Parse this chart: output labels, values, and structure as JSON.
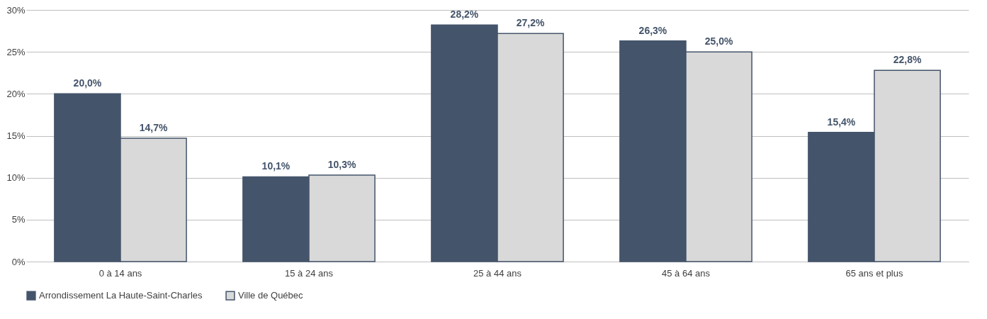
{
  "chart_data": {
    "type": "bar",
    "categories": [
      "0 à 14 ans",
      "15 à 24 ans",
      "25 à 44 ans",
      "45 à 64 ans",
      "65 ans et plus"
    ],
    "series": [
      {
        "name": "Arrondissement La Haute-Saint-Charles",
        "color": "#44546a",
        "values": [
          20.0,
          10.1,
          28.2,
          26.3,
          15.4
        ],
        "value_labels": [
          "20,0%",
          "10,1%",
          "28,2%",
          "26,3%",
          "15,4%"
        ]
      },
      {
        "name": "Ville de Québec",
        "color": "#d9d9d9",
        "values": [
          14.7,
          10.3,
          27.2,
          25.0,
          22.8
        ],
        "value_labels": [
          "14,7%",
          "10,3%",
          "27,2%",
          "25,0%",
          "22,8%"
        ]
      }
    ],
    "ylim": [
      0,
      30
    ],
    "yticks": [
      {
        "value": 0,
        "label": "0%"
      },
      {
        "value": 5,
        "label": "5%"
      },
      {
        "value": 10,
        "label": "10%"
      },
      {
        "value": 15,
        "label": "15%"
      },
      {
        "value": 20,
        "label": "20%"
      },
      {
        "value": 25,
        "label": "25%"
      },
      {
        "value": 30,
        "label": "30%"
      }
    ],
    "grid": "y",
    "legend": "bottom"
  }
}
